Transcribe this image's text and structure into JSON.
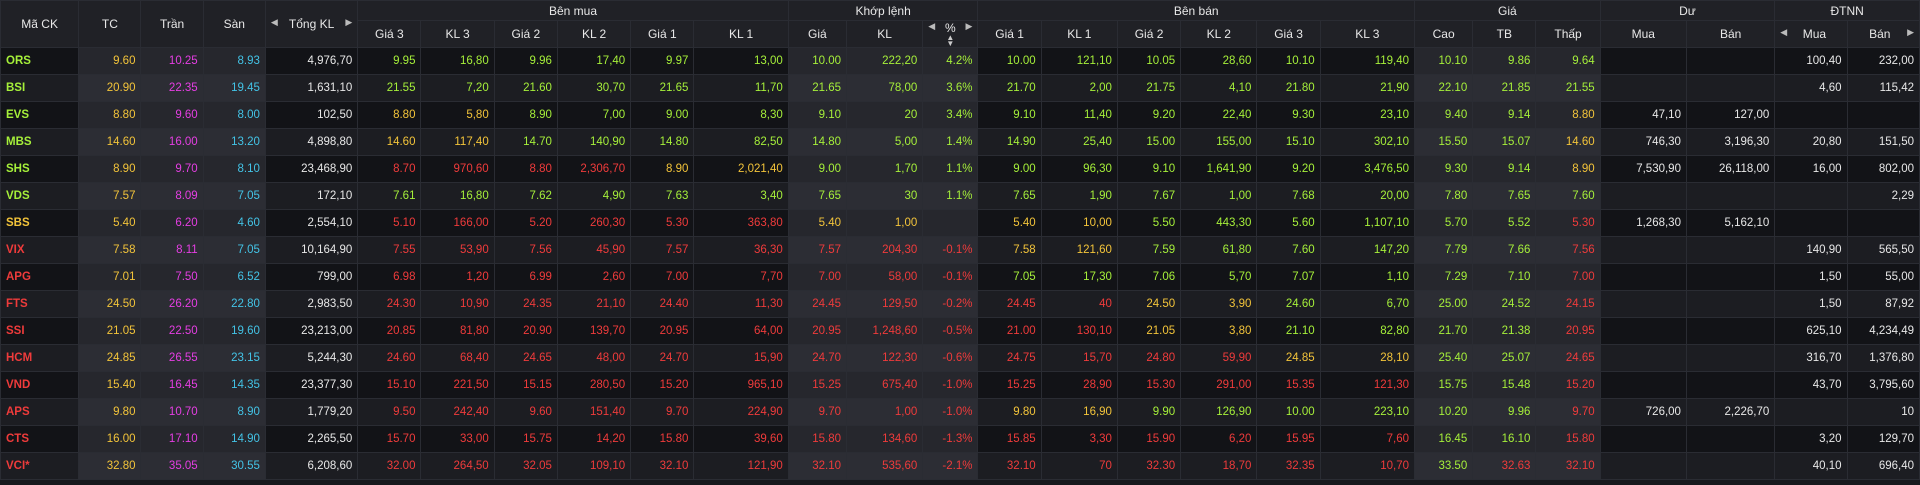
{
  "headers": {
    "symbol": "Mã CK",
    "ref": "TC",
    "ceil": "Trần",
    "floor": "Sàn",
    "total_vol": "Tổng KL",
    "bid_group": "Bên mua",
    "match_group": "Khớp lệnh",
    "ask_group": "Bên bán",
    "price_group": "Giá",
    "remain_group": "Dư",
    "foreign_group": "ĐTNN",
    "bid_cols": [
      "Giá 3",
      "KL 3",
      "Giá 2",
      "KL 2",
      "Giá 1",
      "KL 1"
    ],
    "match_cols": [
      "Giá",
      "KL",
      "%"
    ],
    "ask_cols": [
      "Giá 1",
      "KL 1",
      "Giá 2",
      "KL 2",
      "Giá 3",
      "KL 3"
    ],
    "price_cols": [
      "Cao",
      "TB",
      "Thấp"
    ],
    "remain_cols": [
      "Mua",
      "Bán"
    ],
    "foreign_cols": [
      "Mua",
      "Bán"
    ]
  },
  "colors": {
    "up": "#a6f03a",
    "down": "#ef3b3b",
    "reference": "#f3c43a",
    "ceiling": "#e53ee3",
    "floor": "#43c3e6",
    "neutral": "#e8e8e8"
  },
  "rows": [
    {
      "symbol": "ORS",
      "tc": "9.60",
      "tran": "10.25",
      "san": "8.93",
      "tong_kl": "4,976,70",
      "bid": [
        "9.95",
        "16,80",
        "9.96",
        "17,40",
        "9.97",
        "13,00"
      ],
      "match": [
        "10.00",
        "222,20",
        "4.2%"
      ],
      "ask": [
        "10.00",
        "121,10",
        "10.05",
        "28,60",
        "10.10",
        "119,40"
      ],
      "price": [
        "10.10",
        "9.86",
        "9.64"
      ],
      "du": [
        "",
        ""
      ],
      "dtnn": [
        "100,40",
        "232,00"
      ]
    },
    {
      "symbol": "BSI",
      "tc": "20.90",
      "tran": "22.35",
      "san": "19.45",
      "tong_kl": "1,631,10",
      "bid": [
        "21.55",
        "7,20",
        "21.60",
        "30,70",
        "21.65",
        "11,70"
      ],
      "match": [
        "21.65",
        "78,00",
        "3.6%"
      ],
      "ask": [
        "21.70",
        "2,00",
        "21.75",
        "4,10",
        "21.80",
        "21,90"
      ],
      "price": [
        "22.10",
        "21.85",
        "21.55"
      ],
      "du": [
        "",
        ""
      ],
      "dtnn": [
        "4,60",
        "115,42"
      ]
    },
    {
      "symbol": "EVS",
      "tc": "8.80",
      "tran": "9.60",
      "san": "8.00",
      "tong_kl": "102,50",
      "bid": [
        "8.80",
        "5,80",
        "8.90",
        "7,00",
        "9.00",
        "8,30"
      ],
      "match": [
        "9.10",
        "20",
        "3.4%"
      ],
      "ask": [
        "9.10",
        "11,40",
        "9.20",
        "22,40",
        "9.30",
        "23,10"
      ],
      "price": [
        "9.40",
        "9.14",
        "8.80"
      ],
      "du": [
        "47,10",
        "127,00"
      ],
      "dtnn": [
        "",
        ""
      ]
    },
    {
      "symbol": "MBS",
      "tc": "14.60",
      "tran": "16.00",
      "san": "13.20",
      "tong_kl": "4,898,80",
      "bid": [
        "14.60",
        "117,40",
        "14.70",
        "140,90",
        "14.80",
        "82,50"
      ],
      "match": [
        "14.80",
        "5,00",
        "1.4%"
      ],
      "ask": [
        "14.90",
        "25,40",
        "15.00",
        "155,00",
        "15.10",
        "302,10"
      ],
      "price": [
        "15.50",
        "15.07",
        "14.60"
      ],
      "du": [
        "746,30",
        "3,196,30"
      ],
      "dtnn": [
        "20,80",
        "151,50"
      ]
    },
    {
      "symbol": "SHS",
      "tc": "8.90",
      "tran": "9.70",
      "san": "8.10",
      "tong_kl": "23,468,90",
      "bid": [
        "8.70",
        "970,60",
        "8.80",
        "2,306,70",
        "8.90",
        "2,021,40"
      ],
      "match": [
        "9.00",
        "1,70",
        "1.1%"
      ],
      "ask": [
        "9.00",
        "96,30",
        "9.10",
        "1,641,90",
        "9.20",
        "3,476,50"
      ],
      "price": [
        "9.30",
        "9.14",
        "8.90"
      ],
      "du": [
        "7,530,90",
        "26,118,00"
      ],
      "dtnn": [
        "16,00",
        "802,00"
      ]
    },
    {
      "symbol": "VDS",
      "tc": "7.57",
      "tran": "8.09",
      "san": "7.05",
      "tong_kl": "172,10",
      "bid": [
        "7.61",
        "16,80",
        "7.62",
        "4,90",
        "7.63",
        "3,40"
      ],
      "match": [
        "7.65",
        "30",
        "1.1%"
      ],
      "ask": [
        "7.65",
        "1,90",
        "7.67",
        "1,00",
        "7.68",
        "20,00"
      ],
      "price": [
        "7.80",
        "7.65",
        "7.60"
      ],
      "du": [
        "",
        ""
      ],
      "dtnn": [
        "",
        "2,29"
      ]
    },
    {
      "symbol": "SBS",
      "tc": "5.40",
      "tran": "6.20",
      "san": "4.60",
      "tong_kl": "2,554,10",
      "bid": [
        "5.10",
        "166,00",
        "5.20",
        "260,30",
        "5.30",
        "363,80"
      ],
      "match": [
        "5.40",
        "1,00",
        ""
      ],
      "ask": [
        "5.40",
        "10,00",
        "5.50",
        "443,30",
        "5.60",
        "1,107,10"
      ],
      "price": [
        "5.70",
        "5.52",
        "5.30"
      ],
      "du": [
        "1,268,30",
        "5,162,10"
      ],
      "dtnn": [
        "",
        ""
      ]
    },
    {
      "symbol": "VIX",
      "tc": "7.58",
      "tran": "8.11",
      "san": "7.05",
      "tong_kl": "10,164,90",
      "bid": [
        "7.55",
        "53,90",
        "7.56",
        "45,90",
        "7.57",
        "36,30"
      ],
      "match": [
        "7.57",
        "204,30",
        "-0.1%"
      ],
      "ask": [
        "7.58",
        "121,60",
        "7.59",
        "61,80",
        "7.60",
        "147,20"
      ],
      "price": [
        "7.79",
        "7.66",
        "7.56"
      ],
      "du": [
        "",
        ""
      ],
      "dtnn": [
        "140,90",
        "565,50"
      ]
    },
    {
      "symbol": "APG",
      "tc": "7.01",
      "tran": "7.50",
      "san": "6.52",
      "tong_kl": "799,00",
      "bid": [
        "6.98",
        "1,20",
        "6.99",
        "2,60",
        "7.00",
        "7,70"
      ],
      "match": [
        "7.00",
        "58,00",
        "-0.1%"
      ],
      "ask": [
        "7.05",
        "17,30",
        "7.06",
        "5,70",
        "7.07",
        "1,10"
      ],
      "price": [
        "7.29",
        "7.10",
        "7.00"
      ],
      "du": [
        "",
        ""
      ],
      "dtnn": [
        "1,50",
        "55,00"
      ]
    },
    {
      "symbol": "FTS",
      "tc": "24.50",
      "tran": "26.20",
      "san": "22.80",
      "tong_kl": "2,983,50",
      "bid": [
        "24.30",
        "10,90",
        "24.35",
        "21,10",
        "24.40",
        "11,30"
      ],
      "match": [
        "24.45",
        "129,50",
        "-0.2%"
      ],
      "ask": [
        "24.45",
        "40",
        "24.50",
        "3,90",
        "24.60",
        "6,70"
      ],
      "price": [
        "25.00",
        "24.52",
        "24.15"
      ],
      "du": [
        "",
        ""
      ],
      "dtnn": [
        "1,50",
        "87,92"
      ]
    },
    {
      "symbol": "SSI",
      "tc": "21.05",
      "tran": "22.50",
      "san": "19.60",
      "tong_kl": "23,213,00",
      "bid": [
        "20.85",
        "81,80",
        "20.90",
        "139,70",
        "20.95",
        "64,00"
      ],
      "match": [
        "20.95",
        "1,248,60",
        "-0.5%"
      ],
      "ask": [
        "21.00",
        "130,10",
        "21.05",
        "3,80",
        "21.10",
        "82,80"
      ],
      "price": [
        "21.70",
        "21.38",
        "20.95"
      ],
      "du": [
        "",
        ""
      ],
      "dtnn": [
        "625,10",
        "4,234,49"
      ]
    },
    {
      "symbol": "HCM",
      "tc": "24.85",
      "tran": "26.55",
      "san": "23.15",
      "tong_kl": "5,244,30",
      "bid": [
        "24.60",
        "68,40",
        "24.65",
        "48,00",
        "24.70",
        "15,90"
      ],
      "match": [
        "24.70",
        "122,30",
        "-0.6%"
      ],
      "ask": [
        "24.75",
        "15,70",
        "24.80",
        "59,90",
        "24.85",
        "28,10"
      ],
      "price": [
        "25.40",
        "25.07",
        "24.65"
      ],
      "du": [
        "",
        ""
      ],
      "dtnn": [
        "316,70",
        "1,376,80"
      ]
    },
    {
      "symbol": "VND",
      "tc": "15.40",
      "tran": "16.45",
      "san": "14.35",
      "tong_kl": "23,377,30",
      "bid": [
        "15.10",
        "221,50",
        "15.15",
        "280,50",
        "15.20",
        "965,10"
      ],
      "match": [
        "15.25",
        "675,40",
        "-1.0%"
      ],
      "ask": [
        "15.25",
        "28,90",
        "15.30",
        "291,00",
        "15.35",
        "121,30"
      ],
      "price": [
        "15.75",
        "15.48",
        "15.20"
      ],
      "du": [
        "",
        ""
      ],
      "dtnn": [
        "43,70",
        "3,795,60"
      ]
    },
    {
      "symbol": "APS",
      "tc": "9.80",
      "tran": "10.70",
      "san": "8.90",
      "tong_kl": "1,779,20",
      "bid": [
        "9.50",
        "242,40",
        "9.60",
        "151,40",
        "9.70",
        "224,90"
      ],
      "match": [
        "9.70",
        "1,00",
        "-1.0%"
      ],
      "ask": [
        "9.80",
        "16,90",
        "9.90",
        "126,90",
        "10.00",
        "223,10"
      ],
      "price": [
        "10.20",
        "9.96",
        "9.70"
      ],
      "du": [
        "726,00",
        "2,226,70"
      ],
      "dtnn": [
        "",
        "10"
      ]
    },
    {
      "symbol": "CTS",
      "tc": "16.00",
      "tran": "17.10",
      "san": "14.90",
      "tong_kl": "2,265,50",
      "bid": [
        "15.70",
        "33,00",
        "15.75",
        "14,20",
        "15.80",
        "39,60"
      ],
      "match": [
        "15.80",
        "134,60",
        "-1.3%"
      ],
      "ask": [
        "15.85",
        "3,30",
        "15.90",
        "6,20",
        "15.95",
        "7,60"
      ],
      "price": [
        "16.45",
        "16.10",
        "15.80"
      ],
      "du": [
        "",
        ""
      ],
      "dtnn": [
        "3,20",
        "129,70"
      ]
    },
    {
      "symbol": "VCI*",
      "tc": "32.80",
      "tran": "35.05",
      "san": "30.55",
      "tong_kl": "6,208,60",
      "bid": [
        "32.00",
        "264,50",
        "32.05",
        "109,10",
        "32.10",
        "121,90"
      ],
      "match": [
        "32.10",
        "535,60",
        "-2.1%"
      ],
      "ask": [
        "32.10",
        "70",
        "32.30",
        "18,70",
        "32.35",
        "10,70"
      ],
      "price": [
        "33.50",
        "32.63",
        "32.10"
      ],
      "du": [
        "",
        ""
      ],
      "dtnn": [
        "40,10",
        "696,40"
      ]
    }
  ]
}
